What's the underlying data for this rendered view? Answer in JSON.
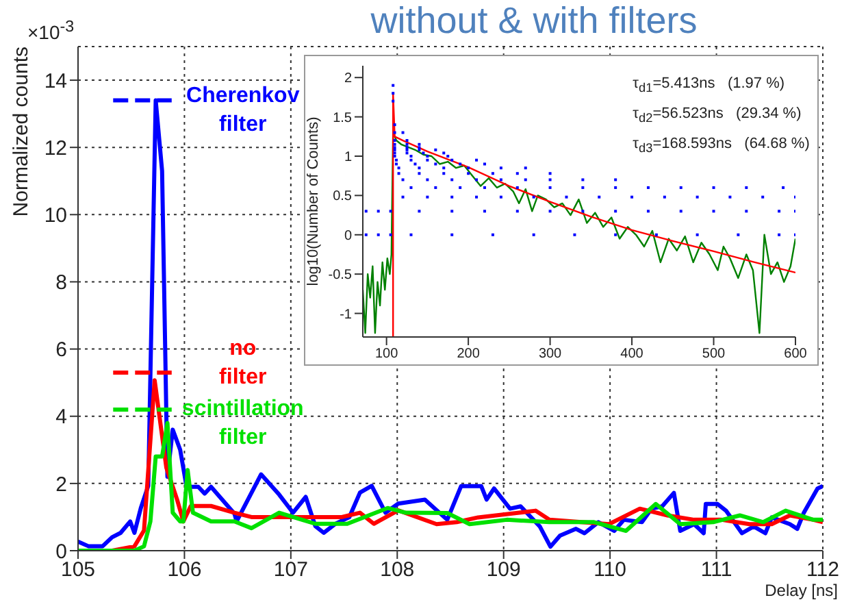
{
  "chart_data": [
    {
      "type": "line",
      "title": "without & with filters",
      "xlabel": "Delay [ns]",
      "ylabel": "Normalized counts",
      "annotations": [
        "×10$^{-3}$"
      ],
      "xlim": [
        105,
        112
      ],
      "xticks": [
        105,
        106,
        107,
        108,
        109,
        110,
        111,
        112
      ],
      "ylim": [
        0,
        15
      ],
      "yticks": [
        0,
        2,
        4,
        6,
        8,
        10,
        12,
        14
      ],
      "grid": true,
      "series": [
        {
          "color": "#0000ff",
          "x": [
            105,
            105.1,
            105.23,
            105.32,
            105.4,
            105.49,
            105.53,
            105.59,
            105.66,
            105.73,
            105.79,
            105.84,
            105.89,
            105.96,
            106.02,
            106.13,
            106.19,
            106.25,
            106.47,
            106.49,
            106.72,
            106.89,
            107.02,
            107.14,
            107.23,
            107.31,
            107.42,
            107.55,
            107.65,
            107.76,
            107.89,
            108.01,
            108.26,
            108.47,
            108.6,
            108.79,
            108.84,
            108.91,
            109.06,
            109.16,
            109.34,
            109.44,
            109.53,
            109.68,
            109.76,
            109.89,
            110.04,
            110.13,
            110.3,
            110.39,
            110.49,
            110.6,
            110.66,
            110.79,
            110.88,
            110.9,
            111.01,
            111.09,
            111.24,
            111.35,
            111.46,
            111.52,
            111.69,
            111.76,
            111.82,
            111.95,
            112
          ],
          "values": [
            0.27,
            0.13,
            0.13,
            0.4,
            0.53,
            0.87,
            0.53,
            1.27,
            1.93,
            13.4,
            11.3,
            2.2,
            3.6,
            3.0,
            1.9,
            1.9,
            1.7,
            1.9,
            1.1,
            0.87,
            2.27,
            1.67,
            1.13,
            1.6,
            0.73,
            0.53,
            0.8,
            1.0,
            1.73,
            1.93,
            1.13,
            1.4,
            1.52,
            0.92,
            1.92,
            1.92,
            1.52,
            1.85,
            1.25,
            1.32,
            0.72,
            0.12,
            0.45,
            0.65,
            0.52,
            0.85,
            0.59,
            0.92,
            0.85,
            1.25,
            1.32,
            1.72,
            0.59,
            0.79,
            0.52,
            1.39,
            1.39,
            1.19,
            0.52,
            0.72,
            0.52,
            0.99,
            0.79,
            0.65,
            1.12,
            1.85,
            1.92
          ]
        },
        {
          "color": "#ff0000",
          "x": [
            105,
            105.32,
            105.53,
            105.62,
            105.72,
            105.83,
            105.93,
            105.99,
            106.06,
            106.25,
            106.47,
            106.63,
            106.89,
            107.23,
            107.48,
            107.65,
            107.78,
            108.01,
            108.37,
            108.56,
            108.76,
            109.12,
            109.3,
            109.43,
            109.99,
            110.28,
            110.54,
            110.79,
            111.05,
            111.31,
            111.52,
            111.69,
            111.91,
            112
          ],
          "values": [
            0,
            0,
            0.13,
            0.6,
            5.07,
            2.47,
            1.53,
            0.87,
            1.33,
            1.33,
            1.13,
            1.0,
            1.0,
            1.0,
            1.0,
            1.13,
            0.8,
            1.2,
            0.79,
            0.85,
            0.99,
            1.12,
            1.19,
            0.92,
            0.79,
            1.25,
            1.05,
            0.92,
            0.92,
            0.79,
            0.79,
            1.05,
            0.92,
            0.85
          ]
        },
        {
          "color": "#00e000",
          "x": [
            105,
            105.53,
            105.62,
            105.68,
            105.73,
            105.79,
            105.84,
            105.89,
            105.96,
            105.99,
            106.03,
            106.08,
            106.25,
            106.47,
            106.63,
            106.89,
            107.23,
            107.53,
            107.91,
            108.08,
            108.47,
            108.68,
            109.03,
            109.43,
            109.85,
            110.15,
            110.43,
            110.66,
            110.97,
            111.22,
            111.44,
            111.65,
            111.91,
            112
          ],
          "values": [
            0,
            0,
            0.13,
            0.87,
            2.8,
            2.8,
            3.8,
            1.13,
            0.87,
            0.87,
            2.4,
            1.13,
            0.87,
            0.87,
            0.67,
            1.13,
            0.8,
            0.8,
            1.27,
            1.13,
            1.12,
            0.79,
            0.92,
            0.85,
            0.85,
            0.59,
            1.39,
            0.79,
            0.85,
            1.05,
            0.85,
            1.19,
            0.92,
            0.92
          ]
        },
        {
          "name": "Cherenkov filter",
          "color": "#0000ff",
          "line_style": "dashed",
          "x": [
            105.33,
            105.88
          ],
          "values": [
            13.4,
            13.4
          ]
        },
        {
          "name": "no filter",
          "color": "#ff0000",
          "line_style": "dashed",
          "x": [
            105.33,
            105.88
          ],
          "values": [
            5.3,
            5.3
          ]
        },
        {
          "name": "scintillation filter",
          "color": "#00e000",
          "line_style": "dashed",
          "x": [
            105.33,
            105.88
          ],
          "values": [
            4.2,
            4.2
          ]
        }
      ]
    },
    {
      "type": "line",
      "ylabel": "log10(Number of Counts)",
      "annotations": [
        "τ$_{d1}$=5.413ns   (1.97 %)",
        "τ$_{d2}$=56.523ns   (29.34 %)",
        "τ$_{d3}$=168.593ns   (64.68 %)"
      ],
      "xlim": [
        71,
        600
      ],
      "xticks": [
        100,
        200,
        300,
        400,
        500,
        600
      ],
      "ylim": [
        -1.3,
        2.15
      ],
      "yticks": [
        -1,
        -0.5,
        0,
        0.5,
        1,
        1.5,
        2
      ],
      "series": [
        {
          "type": "scatter",
          "color": "#0000ff",
          "x": [
            75,
            90,
            105,
            130,
            180,
            230,
            280,
            330,
            380,
            430,
            480,
            530,
            580,
            600,
            75,
            90,
            105,
            140,
            180,
            220,
            260,
            300,
            340,
            380,
            420,
            460,
            500,
            540,
            580,
            600,
            120,
            150,
            180,
            210,
            240,
            280,
            320,
            360,
            400,
            440,
            480,
            520,
            560,
            600,
            130,
            160,
            190,
            220,
            260,
            300,
            340,
            380,
            420,
            460,
            500,
            540,
            585,
            120,
            150,
            180,
            210,
            240,
            270,
            300,
            340,
            380,
            115,
            140,
            170,
            200,
            230,
            260,
            300,
            115,
            140,
            170,
            200,
            240,
            270,
            112,
            135,
            160,
            190,
            220,
            112,
            130,
            150,
            180,
            210,
            110,
            130,
            150,
            175,
            110,
            125,
            145,
            170,
            110,
            125,
            140,
            160,
            110,
            125,
            140,
            110,
            125,
            140,
            110,
            125,
            110,
            120,
            110,
            108,
            108,
            108
          ],
          "values": [
            0,
            0,
            0,
            0,
            0,
            0,
            0,
            0,
            0,
            0,
            0,
            0,
            0,
            0,
            0.3,
            0.3,
            0.3,
            0.3,
            0.3,
            0.3,
            0.3,
            0.3,
            0.3,
            0.3,
            0.3,
            0.3,
            0.3,
            0.3,
            0.3,
            0.3,
            0.48,
            0.48,
            0.48,
            0.48,
            0.48,
            0.48,
            0.48,
            0.48,
            0.48,
            0.48,
            0.48,
            0.48,
            0.48,
            0.48,
            0.6,
            0.6,
            0.6,
            0.6,
            0.6,
            0.6,
            0.6,
            0.6,
            0.6,
            0.6,
            0.6,
            0.6,
            0.6,
            0.7,
            0.7,
            0.7,
            0.7,
            0.7,
            0.7,
            0.7,
            0.7,
            0.7,
            0.78,
            0.78,
            0.78,
            0.78,
            0.78,
            0.78,
            0.78,
            0.85,
            0.85,
            0.85,
            0.85,
            0.85,
            0.85,
            0.9,
            0.9,
            0.9,
            0.9,
            0.9,
            0.95,
            0.95,
            0.95,
            0.95,
            0.95,
            1.0,
            1.0,
            1.0,
            1.0,
            1.04,
            1.04,
            1.04,
            1.04,
            1.08,
            1.08,
            1.08,
            1.08,
            1.11,
            1.11,
            1.11,
            1.15,
            1.15,
            1.15,
            1.2,
            1.2,
            1.3,
            1.3,
            1.4,
            1.9,
            1.8,
            1.7
          ]
        },
        {
          "color": "#008000",
          "x": [
            71,
            74,
            77,
            80,
            83,
            86,
            89,
            92,
            95,
            98,
            101,
            104,
            106,
            108,
            112,
            118,
            125,
            135,
            145,
            155,
            165,
            175,
            185,
            195,
            205,
            215,
            225,
            235,
            245,
            255,
            262,
            270,
            278,
            285,
            295,
            305,
            315,
            325,
            335,
            345,
            355,
            365,
            375,
            385,
            395,
            405,
            415,
            425,
            435,
            445,
            455,
            465,
            475,
            485,
            495,
            505,
            512,
            520,
            530,
            540,
            548,
            556,
            562,
            570,
            578,
            586,
            594,
            600
          ],
          "values": [
            -0.7,
            -1.25,
            -0.5,
            -0.8,
            -0.4,
            -1.25,
            -0.6,
            -0.9,
            -0.35,
            -0.7,
            -0.3,
            -0.5,
            -0.25,
            1.3,
            1.2,
            1.15,
            1.12,
            1.08,
            1.02,
            1.0,
            0.9,
            0.93,
            0.85,
            0.88,
            0.75,
            0.62,
            0.72,
            0.6,
            0.65,
            0.55,
            0.4,
            0.58,
            0.3,
            0.5,
            0.45,
            0.35,
            0.4,
            0.25,
            0.45,
            0.15,
            0.28,
            0.1,
            0.22,
            -0.05,
            0.1,
            0.0,
            -0.15,
            0.05,
            -0.35,
            -0.05,
            -0.2,
            -0.02,
            -0.35,
            -0.1,
            -0.25,
            -0.45,
            -0.15,
            -0.3,
            -0.55,
            -0.25,
            -0.45,
            -1.25,
            0.0,
            -0.5,
            -0.35,
            -0.6,
            -0.4,
            -0.05
          ]
        },
        {
          "color": "#ff0000",
          "x": [
            108,
            108,
            110,
            120,
            150,
            200,
            250,
            300,
            350,
            400,
            450,
            500,
            550,
            600
          ],
          "values": [
            -1.3,
            1.8,
            1.25,
            1.2,
            1.06,
            0.86,
            0.62,
            0.42,
            0.23,
            0.06,
            -0.08,
            -0.21,
            -0.35,
            -0.48
          ]
        }
      ]
    }
  ]
}
